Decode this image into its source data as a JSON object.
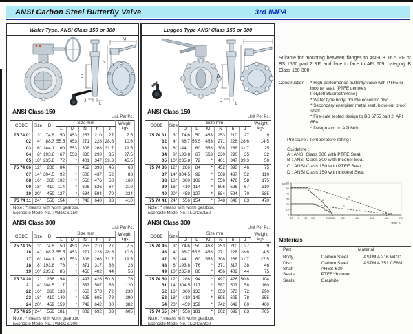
{
  "header": {
    "title": "ANSI Carbon Steel Butterfly Valve",
    "edition": "3rd IMPA"
  },
  "dim_labels": {
    "m": "M",
    "n": "N",
    "h": "h",
    "d": "D",
    "j": "J",
    "l": "L"
  },
  "table_labels": {
    "code": "CODE",
    "size": "Size",
    "d": "D",
    "group": "Size mm",
    "l": "L",
    "m": "M",
    "n": "N",
    "h": "h",
    "j": "J",
    "weight": "Weight",
    "kgs": "kgs",
    "unit": "Unit Per Pc."
  },
  "wafer": {
    "panel_title": "Wafer Type, ANSI Class 150 or 300",
    "class150": {
      "heading": "ANSI Class 150",
      "table": {
        "rows": [
          [
            "75 74 01",
            "3\"",
            "74.6",
            "50",
            "453",
            "253",
            "210",
            "27",
            "7.5"
          ],
          [
            "02",
            "4\"",
            "88.7",
            "55.5",
            "453",
            "271",
            "228",
            "28.6",
            "10.6"
          ],
          [
            "03",
            "6\"",
            "144.1",
            "60",
            "553",
            "308",
            "268",
            "31.7",
            "19.5"
          ],
          [
            "04",
            "8\"",
            "193.8",
            "67",
            "553",
            "330",
            "290",
            "35",
            "27.5"
          ],
          [
            "05",
            "10\"",
            "235.8",
            "72",
            "*",
            "401",
            "347",
            "39.3",
            "45.5"
          ],
          [
            "75 74 06",
            "12\"",
            "286",
            "84",
            "*",
            "452",
            "398",
            "46",
            "68"
          ],
          [
            "07",
            "14\"",
            "304.5",
            "92",
            "*",
            "508",
            "437",
            "52",
            "88"
          ],
          [
            "08",
            "16\"",
            "360",
            "102",
            "*",
            "556",
            "476",
            "58",
            "160"
          ],
          [
            "09",
            "18\"",
            "410",
            "114",
            "*",
            "606",
            "526",
            "67",
            "210"
          ],
          [
            "10",
            "20\"",
            "459",
            "127",
            "*",
            "684",
            "594",
            "70",
            "234"
          ],
          [
            "75 74 11",
            "24\"",
            "556",
            "154",
            "*",
            "748",
            "648",
            "83",
            "410"
          ]
        ],
        "breaks": [
          5,
          10
        ]
      },
      "note": "Note : * means with worm gearbox.",
      "model": "Econosto Model No. : WR/CS/150"
    },
    "class300": {
      "heading": "ANSI Class 300",
      "table": {
        "rows": [
          [
            "75 74 15",
            "3\"",
            "74.6",
            "50",
            "453",
            "253",
            "210",
            "27",
            "7.5"
          ],
          [
            "16",
            "4\"",
            "88.7",
            "55.5",
            "453",
            "271",
            "228",
            "28.6",
            "10.6"
          ],
          [
            "17",
            "6\"",
            "144.1",
            "60",
            "553",
            "308",
            "268",
            "31.7",
            "19.5"
          ],
          [
            "18",
            "8\"",
            "193.8",
            "76",
            "*",
            "371",
            "317",
            "38",
            "28"
          ],
          [
            "19",
            "10\"",
            "235.8",
            "86",
            "*",
            "456",
            "402",
            "44",
            "56"
          ],
          [
            "75 74 20",
            "12\"",
            "286",
            "94",
            "*",
            "497",
            "426",
            "50.8",
            "78"
          ],
          [
            "21",
            "14\"",
            "304.5",
            "117",
            "*",
            "587",
            "507",
            "58",
            "120"
          ],
          [
            "22",
            "16\"",
            "360",
            "133",
            "*",
            "653",
            "573",
            "72",
            "230"
          ],
          [
            "23",
            "18\"",
            "410",
            "149",
            "*",
            "695",
            "605",
            "78",
            "290"
          ],
          [
            "24",
            "20\"",
            "459",
            "159",
            "*",
            "742",
            "642",
            "80",
            "382"
          ],
          [
            "75 74 25",
            "24\"",
            "556",
            "181",
            "*",
            "802",
            "692",
            "83",
            "605"
          ]
        ],
        "breaks": [
          5,
          10
        ]
      },
      "note": "Note : * means with worm gearbox.",
      "model": "Econosto Model No. : WR/CS/300"
    }
  },
  "lugged": {
    "panel_title": "Lugged Type  ANSI Class 150 or 300",
    "class150": {
      "heading": "ANSI Class 150",
      "table": {
        "rows": [
          [
            "75 74 31",
            "3\"",
            "74.6",
            "50",
            "453",
            "253",
            "210",
            "27",
            "9"
          ],
          [
            "32",
            "4\"",
            "88.7",
            "55.5",
            "453",
            "271",
            "228",
            "28.6",
            "14.5"
          ],
          [
            "33",
            "6\"",
            "144.1",
            "60",
            "553",
            "308",
            "268",
            "31.7",
            "25"
          ],
          [
            "34",
            "8\"",
            "193.8",
            "67",
            "553",
            "330",
            "290",
            "35",
            "32"
          ],
          [
            "35",
            "10\"",
            "235.8",
            "72",
            "*",
            "401",
            "347",
            "39.3",
            "50"
          ],
          [
            "75 74 36",
            "12\"",
            "286",
            "84",
            "*",
            "452",
            "398",
            "46",
            "75"
          ],
          [
            "37",
            "14\"",
            "304.5",
            "92",
            "*",
            "508",
            "437",
            "52",
            "110"
          ],
          [
            "38",
            "16\"",
            "360",
            "102",
            "*",
            "556",
            "476",
            "58",
            "175"
          ],
          [
            "39",
            "18\"",
            "410",
            "114",
            "*",
            "606",
            "526",
            "67",
            "310"
          ],
          [
            "40",
            "20\"",
            "459",
            "127",
            "*",
            "684",
            "594",
            "70",
            "385"
          ],
          [
            "75 74 41",
            "24\"",
            "556",
            "154",
            "*",
            "748",
            "648",
            "83",
            "470"
          ]
        ],
        "breaks": [
          5,
          10
        ]
      },
      "note": "Note : * means with worm gearbox.",
      "model": "Econosto Model No. : LD/CS/150"
    },
    "class300": {
      "heading": "ANSI Class 300",
      "table": {
        "rows": [
          [
            "75 74 45",
            "3\"",
            "74.6",
            "50",
            "453",
            "253",
            "210",
            "27",
            "9"
          ],
          [
            "46",
            "4\"",
            "88.7",
            "55.5",
            "453",
            "271",
            "228",
            "28.6",
            "14.5"
          ],
          [
            "47",
            "6\"",
            "144.1",
            "60",
            "553",
            "308",
            "268",
            "31.7",
            "27.5"
          ],
          [
            "48",
            "8\"",
            "193.8",
            "76",
            "*",
            "371",
            "317",
            "38",
            "46"
          ],
          [
            "49",
            "10\"",
            "235.8",
            "86",
            "*",
            "456",
            "402",
            "44",
            "75"
          ],
          [
            "75 74 50",
            "12\"",
            "286",
            "94",
            "*",
            "497",
            "426",
            "50.8",
            "104"
          ],
          [
            "51",
            "14\"",
            "304.5",
            "117",
            "*",
            "587",
            "507",
            "58",
            "160"
          ],
          [
            "52",
            "16\"",
            "360",
            "133",
            "*",
            "653",
            "573",
            "72",
            "290"
          ],
          [
            "53",
            "18\"",
            "410",
            "149",
            "*",
            "695",
            "605",
            "78",
            "355"
          ],
          [
            "54",
            "20\"",
            "459",
            "159",
            "*",
            "742",
            "642",
            "80",
            "460"
          ],
          [
            "75 74 55",
            "24\"",
            "556",
            "181",
            "*",
            "802",
            "692",
            "83",
            "705"
          ]
        ],
        "breaks": [
          5,
          10
        ]
      },
      "note": "Note : * means with worm gearbox.",
      "model": "Econosto Model No. : LD/CS/300"
    }
  },
  "info": {
    "intro": "Suitable for mounting between flanges to ANSI B 16.5 RF or BS 1560 part 2 RF, and face to face to API 609, category B Class 150-300.",
    "construction_label": "Construction :",
    "construction_items": [
      "* High performance butterfly valve with PTFE or inconel seat. (PTFE denotes Polytetrafluoroethylene)",
      "* Wafer type body, double eccentric disc.",
      "* Secondary energiser metal seat, blow-out proof shaft.",
      "* Fire-safe tested design to BS 6755 part 2, API 6FA.",
      "* Design acc. to API 609"
    ],
    "pt_label": "Pressure / Temperature rating :",
    "guideline_label": "Guideline :",
    "guidelines": [
      "A : ANSI Class 300 with PTFE Seat",
      "B : ANSI Class 300 with Inconel Seat",
      "C : ANSI Class 150 with PTFE Seat",
      "D : ANSI Class 150 with Inconel Seat"
    ],
    "materials_heading": "Materials",
    "materials_columns": {
      "part": "Part",
      "material": "Material"
    },
    "materials": {
      "rows": [
        [
          "Body",
          "Carbon Steel",
          "ASTM A 216 WCC"
        ],
        [
          "Disc",
          "Carbon Steel",
          "ASTM A 351 CF8M"
        ],
        [
          "Shaft",
          "AHSS-630",
          ""
        ],
        [
          "Seats",
          "PTFE*/Inconel",
          ""
        ],
        [
          "Seals",
          "Graphite",
          ""
        ]
      ]
    }
  },
  "chart_data": {
    "type": "line",
    "title": "Pressure / Temperature rating",
    "xlabel": "temp °C",
    "ylabel": "bar",
    "xlim": [
      -50,
      700
    ],
    "ylim": [
      0,
      60
    ],
    "xticks": [
      -50,
      0,
      50,
      100,
      200,
      232,
      300,
      400,
      500,
      600,
      700
    ],
    "yticks": [
      0,
      10,
      20,
      30,
      40,
      50,
      60
    ],
    "legend_position": "on-curve",
    "grid": false,
    "series": [
      {
        "name": "A",
        "style": "solid",
        "label_at": [
          160,
          26
        ],
        "points": [
          [
            -50,
            51
          ],
          [
            50,
            51
          ],
          [
            150,
            28
          ],
          [
            200,
            13
          ],
          [
            232,
            1
          ]
        ]
      },
      {
        "name": "B",
        "style": "dashed",
        "label_at": [
          335,
          32
        ],
        "points": [
          [
            -50,
            52
          ],
          [
            50,
            52
          ],
          [
            150,
            46
          ],
          [
            250,
            37
          ],
          [
            350,
            28
          ],
          [
            450,
            19
          ],
          [
            550,
            9
          ],
          [
            640,
            1
          ]
        ]
      },
      {
        "name": "C",
        "style": "solid",
        "label_at": [
          175,
          8
        ],
        "points": [
          [
            -50,
            21
          ],
          [
            100,
            21
          ],
          [
            170,
            13
          ],
          [
            232,
            1
          ]
        ]
      },
      {
        "name": "D",
        "style": "dashed",
        "label_at": [
          300,
          15
        ],
        "points": [
          [
            -50,
            21
          ],
          [
            100,
            21
          ],
          [
            232,
            14
          ],
          [
            350,
            10
          ],
          [
            500,
            5
          ],
          [
            620,
            1
          ]
        ]
      }
    ]
  },
  "colors": {
    "header_bg": "#aeeaf6",
    "edition_blue": "#0b2fd0",
    "rule_blue": "#1d2f9e"
  }
}
